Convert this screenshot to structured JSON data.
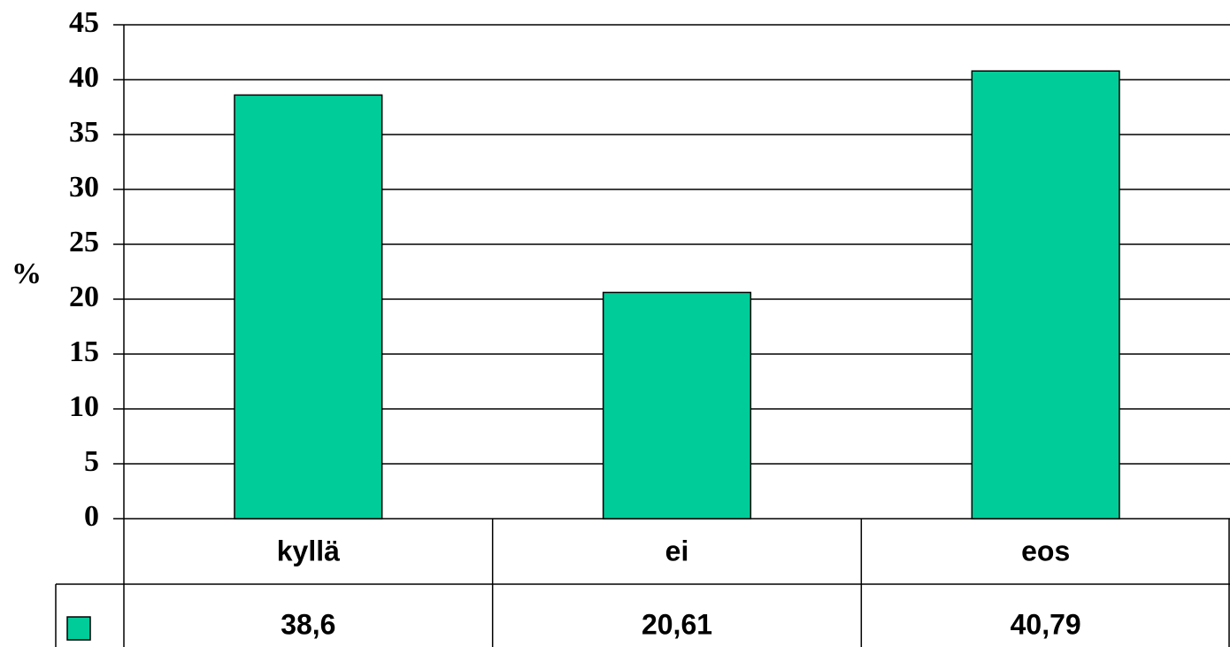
{
  "chart_data": {
    "type": "bar",
    "y_label": "%",
    "categories": [
      "kyllä",
      "ei",
      "eos"
    ],
    "values": [
      38.6,
      20.61,
      40.79
    ],
    "value_labels": [
      "38,6",
      "20,61",
      "40,79"
    ],
    "color": "#00cc99",
    "ylim": [
      0,
      45
    ],
    "yticks": [
      0,
      5,
      10,
      15,
      20,
      25,
      30,
      35,
      40,
      45
    ],
    "grid": true
  }
}
